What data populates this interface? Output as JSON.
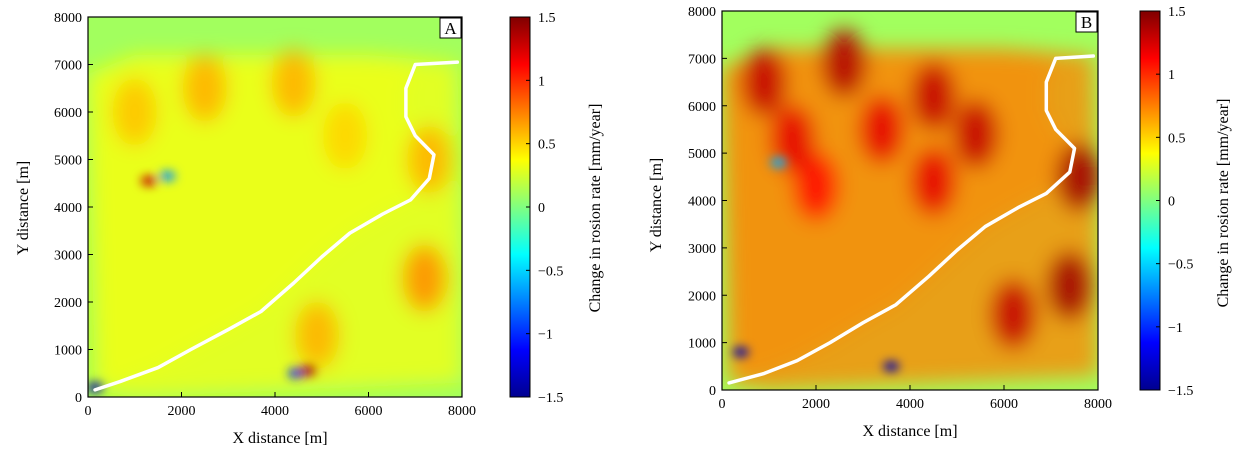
{
  "chart_data": [
    {
      "type": "heatmap",
      "panel_label": "A",
      "xlabel": "X distance [m]",
      "ylabel": "Y distance [m]",
      "xlim": [
        0,
        8000
      ],
      "ylim": [
        0,
        8000
      ],
      "xticks": [
        "0",
        "2000",
        "4000",
        "6000",
        "8000"
      ],
      "yticks": [
        "0",
        "1000",
        "2000",
        "3000",
        "4000",
        "5000",
        "6000",
        "7000",
        "8000"
      ],
      "colorbar": {
        "label": "Change in rosion rate [mm/year]",
        "range": [
          -1.5,
          1.5
        ],
        "ticks": [
          "1.5",
          "1",
          "0.5",
          "0",
          "−0.5",
          "−1",
          "−1.5"
        ]
      },
      "background_value": 0.1,
      "catchment_value": 0.35,
      "channel_color": "#ffffff",
      "channel_path": [
        [
          150,
          150
        ],
        [
          700,
          330
        ],
        [
          1500,
          620
        ],
        [
          2200,
          1000
        ],
        [
          3000,
          1420
        ],
        [
          3700,
          1800
        ],
        [
          4400,
          2400
        ],
        [
          5000,
          2950
        ],
        [
          5600,
          3450
        ],
        [
          6300,
          3850
        ],
        [
          6900,
          4150
        ],
        [
          7300,
          4600
        ],
        [
          7400,
          5100
        ],
        [
          7000,
          5500
        ],
        [
          6800,
          5900
        ],
        [
          6800,
          6500
        ],
        [
          7000,
          7000
        ],
        [
          7900,
          7050
        ]
      ],
      "ridges": [
        {
          "x": 1000,
          "y": 6000,
          "value": 0.55
        },
        {
          "x": 2500,
          "y": 6500,
          "value": 0.6
        },
        {
          "x": 4400,
          "y": 6600,
          "value": 0.6
        },
        {
          "x": 5500,
          "y": 5500,
          "value": 0.5
        },
        {
          "x": 7300,
          "y": 5000,
          "value": 0.6
        },
        {
          "x": 7200,
          "y": 2500,
          "value": 0.7
        },
        {
          "x": 4900,
          "y": 1300,
          "value": 0.6
        }
      ],
      "anomalies": [
        {
          "x": 1300,
          "y": 4550,
          "value": 1.3
        },
        {
          "x": 1700,
          "y": 4650,
          "value": -0.7
        },
        {
          "x": 4450,
          "y": 500,
          "value": -1.0
        },
        {
          "x": 4700,
          "y": 550,
          "value": 1.4
        },
        {
          "x": 150,
          "y": 200,
          "value": -1.4
        }
      ]
    },
    {
      "type": "heatmap",
      "panel_label": "B",
      "xlabel": "X distance [m]",
      "ylabel": "Y distance [m]",
      "xlim": [
        0,
        8000
      ],
      "ylim": [
        0,
        8000
      ],
      "xticks": [
        "0",
        "2000",
        "4000",
        "6000",
        "8000"
      ],
      "yticks": [
        "0",
        "1000",
        "2000",
        "3000",
        "4000",
        "5000",
        "6000",
        "7000",
        "8000"
      ],
      "colorbar": {
        "label": "Change in rosion rate [mm/year]",
        "range": [
          -1.5,
          1.5
        ],
        "ticks": [
          "1.5",
          "1",
          "0.5",
          "0",
          "−0.5",
          "−1",
          "−1.5"
        ]
      },
      "background_value": 0.1,
      "catchment_value": 0.75,
      "channel_color": "#ffffff",
      "channel_path": [
        [
          150,
          150
        ],
        [
          900,
          350
        ],
        [
          1600,
          620
        ],
        [
          2300,
          1000
        ],
        [
          3000,
          1420
        ],
        [
          3700,
          1800
        ],
        [
          4400,
          2400
        ],
        [
          5000,
          2950
        ],
        [
          5600,
          3450
        ],
        [
          6300,
          3850
        ],
        [
          6900,
          4150
        ],
        [
          7400,
          4600
        ],
        [
          7500,
          5100
        ],
        [
          7100,
          5500
        ],
        [
          6900,
          5900
        ],
        [
          6900,
          6500
        ],
        [
          7100,
          7000
        ],
        [
          7900,
          7050
        ]
      ],
      "ridges": [
        {
          "x": 900,
          "y": 6500,
          "value": 1.3
        },
        {
          "x": 2600,
          "y": 6900,
          "value": 1.35
        },
        {
          "x": 3400,
          "y": 5500,
          "value": 1.2
        },
        {
          "x": 4500,
          "y": 6200,
          "value": 1.3
        },
        {
          "x": 5400,
          "y": 5400,
          "value": 1.3
        },
        {
          "x": 7600,
          "y": 4500,
          "value": 1.4
        },
        {
          "x": 7400,
          "y": 2200,
          "value": 1.4
        },
        {
          "x": 6200,
          "y": 1600,
          "value": 1.3
        },
        {
          "x": 4500,
          "y": 4400,
          "value": 1.2
        },
        {
          "x": 2000,
          "y": 4300,
          "value": 1.1
        },
        {
          "x": 1500,
          "y": 5300,
          "value": 1.2
        }
      ],
      "anomalies": [
        {
          "x": 400,
          "y": 800,
          "value": -1.4
        },
        {
          "x": 3600,
          "y": 500,
          "value": -1.4
        },
        {
          "x": 1200,
          "y": 4800,
          "value": -0.6
        }
      ]
    }
  ]
}
